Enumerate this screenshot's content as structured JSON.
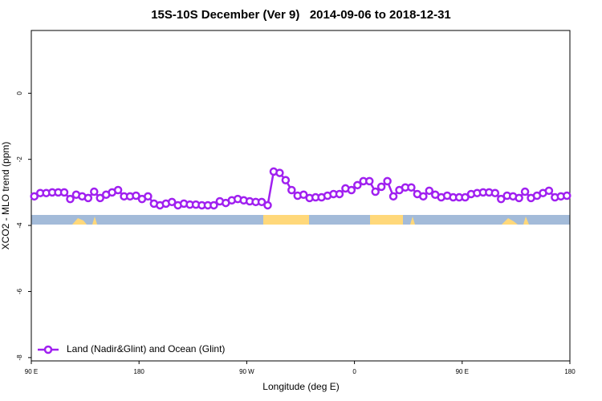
{
  "chart_data": {
    "type": "line",
    "title": "15S-10S December (Ver 9)   2014-09-06 to 2018-12-31",
    "x_label": "Longitude (deg E)",
    "y_label": "XCO2 - MLO trend (ppm)",
    "x": [
      92.5,
      97.5,
      102.5,
      107.5,
      112.5,
      117.5,
      122.5,
      127.5,
      132.5,
      137.5,
      142.5,
      147.5,
      152.5,
      157.5,
      162.5,
      167.5,
      172.5,
      177.5,
      182.5,
      187.5,
      192.5,
      197.5,
      202.5,
      207.5,
      212.5,
      217.5,
      222.5,
      227.5,
      232.5,
      237.5,
      242.5,
      247.5,
      252.5,
      257.5,
      262.5,
      267.5,
      272.5,
      277.5,
      282.5,
      287.5,
      292.5,
      297.5,
      302.5,
      307.5,
      312.5,
      317.5,
      322.5,
      327.5,
      332.5,
      337.5,
      342.5,
      347.5,
      352.5,
      357.5,
      362.5,
      367.5,
      372.5,
      377.5,
      382.5,
      387.5,
      392.5,
      397.5,
      402.5,
      407.5,
      412.5,
      417.5,
      422.5,
      427.5,
      432.5,
      437.5,
      442.5,
      447.5,
      452.5,
      457.5,
      462.5,
      467.5,
      472.5,
      477.5,
      482.5,
      487.5,
      492.5,
      497.5,
      502.5,
      507.5,
      512.5,
      517.5,
      522.5,
      527.5,
      532.5,
      537.5
    ],
    "series": [
      {
        "name": "Land (Nadir&Glint) and Ocean (Glint)",
        "color": "#a020f0",
        "values": [
          -3.12,
          -3.02,
          -3.02,
          -3.0,
          -3.0,
          -3.0,
          -3.2,
          -3.07,
          -3.12,
          -3.17,
          -2.98,
          -3.17,
          -3.07,
          -3.0,
          -2.93,
          -3.12,
          -3.12,
          -3.1,
          -3.2,
          -3.12,
          -3.34,
          -3.39,
          -3.34,
          -3.29,
          -3.39,
          -3.34,
          -3.37,
          -3.37,
          -3.39,
          -3.39,
          -3.39,
          -3.27,
          -3.32,
          -3.24,
          -3.2,
          -3.24,
          -3.27,
          -3.29,
          -3.29,
          -3.39,
          -2.37,
          -2.41,
          -2.63,
          -2.93,
          -3.1,
          -3.07,
          -3.17,
          -3.15,
          -3.15,
          -3.1,
          -3.05,
          -3.05,
          -2.88,
          -2.93,
          -2.78,
          -2.66,
          -2.66,
          -2.98,
          -2.83,
          -2.66,
          -3.12,
          -2.93,
          -2.85,
          -2.85,
          -3.05,
          -3.12,
          -2.95,
          -3.07,
          -3.15,
          -3.1,
          -3.15,
          -3.15,
          -3.15,
          -3.05,
          -3.02,
          -3.0,
          -3.0,
          -3.02,
          -3.2,
          -3.1,
          -3.12,
          -3.17,
          -2.98,
          -3.17,
          -3.1,
          -3.02,
          -2.95,
          -3.15,
          -3.12,
          -3.1
        ]
      }
    ],
    "xlim": [
      90,
      540
    ],
    "xticks": [
      {
        "value": 90,
        "label": "90 E"
      },
      180,
      {
        "value": 270,
        "label": "90 W"
      },
      {
        "value": 360,
        "label": "0"
      },
      {
        "value": 450,
        "label": "90 E"
      },
      {
        "value": 540,
        "label": "180"
      }
    ],
    "ylim": [
      -8.1,
      1.9
    ],
    "yticks": [
      0,
      -2,
      -4,
      -6,
      -8
    ],
    "legend": "bottom-left"
  }
}
